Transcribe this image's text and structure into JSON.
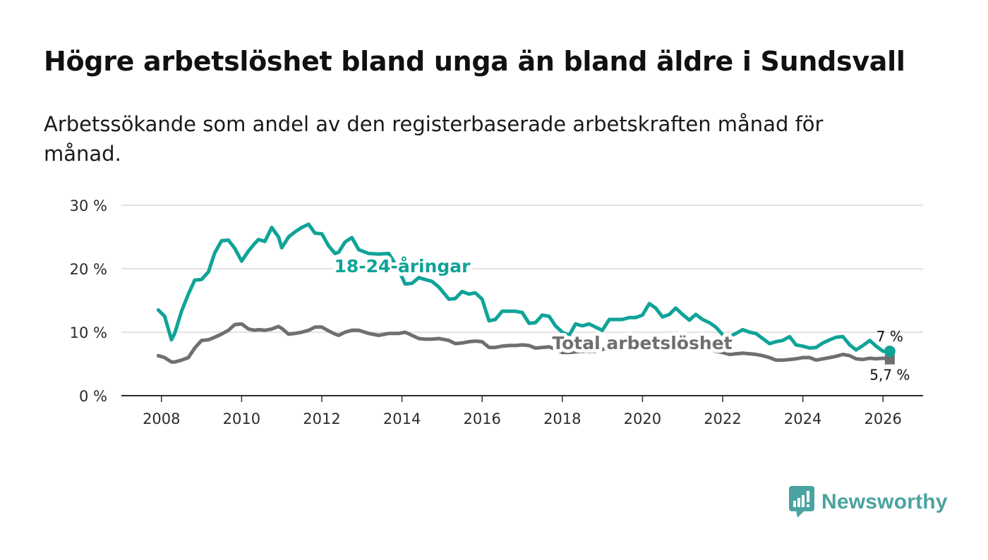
{
  "title": "Högre arbetslöshet bland unga än bland äldre i Sundsvall",
  "subtitle": "Arbetssökande som andel av den registerbaserade arbetskraften månad för månad.",
  "brand": {
    "name": "Newsworthy",
    "icon": "bar-chart-speech-bubble-icon"
  },
  "colors": {
    "youth": "#10a398",
    "total": "#6f6f73",
    "grid": "#d9d9d9",
    "axis": "#2b2b2b",
    "brand": "#4aa3a0"
  },
  "chart_data": {
    "type": "line",
    "title": "Högre arbetslöshet bland unga än bland äldre i Sundsvall",
    "subtitle": "Arbetssökande som andel av den registerbaserade arbetskraften månad för månad.",
    "xlabel": "",
    "ylabel": "",
    "ylim": [
      0,
      30
    ],
    "xlim": [
      2007.0,
      2027.0
    ],
    "grid": true,
    "yticks": [
      0,
      10,
      20,
      30
    ],
    "ytick_labels": [
      "0 %",
      "10 %",
      "20 %",
      "30 %"
    ],
    "xticks": [
      2008,
      2010,
      2012,
      2014,
      2016,
      2018,
      2020,
      2022,
      2024,
      2026
    ],
    "xtick_labels": [
      "2008",
      "2010",
      "2012",
      "2014",
      "2016",
      "2018",
      "2020",
      "2022",
      "2024",
      "2026"
    ],
    "series": [
      {
        "name": "18-24-åringar",
        "label": "18-24-åringar",
        "end_label": "7 %",
        "x": [
          2007.92,
          2008.08,
          2008.25,
          2008.33,
          2008.5,
          2008.67,
          2008.83,
          2009.0,
          2009.17,
          2009.33,
          2009.5,
          2009.67,
          2009.83,
          2010.0,
          2010.17,
          2010.33,
          2010.42,
          2010.58,
          2010.75,
          2010.92,
          2011.0,
          2011.17,
          2011.33,
          2011.5,
          2011.67,
          2011.83,
          2012.0,
          2012.17,
          2012.33,
          2012.42,
          2012.58,
          2012.75,
          2012.92,
          2013.17,
          2013.42,
          2013.67,
          2013.92,
          2014.08,
          2014.25,
          2014.42,
          2014.58,
          2014.75,
          2014.92,
          2015.17,
          2015.33,
          2015.5,
          2015.67,
          2015.83,
          2016.0,
          2016.17,
          2016.33,
          2016.5,
          2016.67,
          2016.83,
          2017.0,
          2017.17,
          2017.33,
          2017.5,
          2017.67,
          2017.83,
          2018.0,
          2018.17,
          2018.33,
          2018.5,
          2018.67,
          2018.83,
          2019.0,
          2019.17,
          2019.33,
          2019.5,
          2019.67,
          2019.83,
          2020.0,
          2020.17,
          2020.33,
          2020.5,
          2020.67,
          2020.83,
          2021.0,
          2021.17,
          2021.33,
          2021.5,
          2021.67,
          2021.83,
          2022.0,
          2022.17,
          2022.33,
          2022.5,
          2022.67,
          2022.83,
          2023.0,
          2023.17,
          2023.33,
          2023.5,
          2023.67,
          2023.83,
          2024.0,
          2024.17,
          2024.33,
          2024.5,
          2024.67,
          2024.83,
          2025.0,
          2025.17,
          2025.33,
          2025.5,
          2025.67,
          2025.83,
          2026.0,
          2026.17
        ],
        "values": [
          13.5,
          12.5,
          8.8,
          9.8,
          13.3,
          16.0,
          18.2,
          18.3,
          19.5,
          22.5,
          24.4,
          24.5,
          23.2,
          21.2,
          22.8,
          24.0,
          24.6,
          24.3,
          26.5,
          25.0,
          23.3,
          25.0,
          25.8,
          26.5,
          27.0,
          25.6,
          25.5,
          23.6,
          22.4,
          22.6,
          24.2,
          24.9,
          23.0,
          22.4,
          22.3,
          22.4,
          19.8,
          17.6,
          17.7,
          18.6,
          18.3,
          18.0,
          17.1,
          15.2,
          15.3,
          16.4,
          16.0,
          16.2,
          15.2,
          11.8,
          12.0,
          13.3,
          13.3,
          13.3,
          13.1,
          11.4,
          11.5,
          12.7,
          12.5,
          11.0,
          10.0,
          9.5,
          11.3,
          11.0,
          11.3,
          10.8,
          10.3,
          12.0,
          12.0,
          12.0,
          12.3,
          12.3,
          12.7,
          14.5,
          13.8,
          12.4,
          12.8,
          13.8,
          12.8,
          11.9,
          12.8,
          12.0,
          11.5,
          10.8,
          9.6,
          9.3,
          9.8,
          10.4,
          10.0,
          9.8,
          9.0,
          8.2,
          8.5,
          8.7,
          9.3,
          8.0,
          7.8,
          7.5,
          7.6,
          8.3,
          8.8,
          9.2,
          9.3,
          8.0,
          7.2,
          7.9,
          8.7,
          7.8,
          7.0,
          7.0
        ]
      },
      {
        "name": "Total arbetslöshet",
        "label": "Total arbetslöshet",
        "end_label": "5,7 %",
        "x": [
          2007.92,
          2008.08,
          2008.25,
          2008.33,
          2008.5,
          2008.67,
          2008.83,
          2009.0,
          2009.17,
          2009.33,
          2009.5,
          2009.67,
          2009.83,
          2010.0,
          2010.17,
          2010.33,
          2010.42,
          2010.58,
          2010.75,
          2010.92,
          2011.0,
          2011.17,
          2011.33,
          2011.5,
          2011.67,
          2011.83,
          2012.0,
          2012.17,
          2012.33,
          2012.42,
          2012.58,
          2012.75,
          2012.92,
          2013.17,
          2013.42,
          2013.67,
          2013.92,
          2014.08,
          2014.25,
          2014.42,
          2014.58,
          2014.75,
          2014.92,
          2015.17,
          2015.33,
          2015.5,
          2015.67,
          2015.83,
          2016.0,
          2016.17,
          2016.33,
          2016.5,
          2016.67,
          2016.83,
          2017.0,
          2017.17,
          2017.33,
          2017.5,
          2017.67,
          2017.83,
          2018.0,
          2018.17,
          2018.33,
          2018.5,
          2018.67,
          2018.83,
          2019.0,
          2019.17,
          2019.33,
          2019.5,
          2019.67,
          2019.83,
          2020.0,
          2020.17,
          2020.33,
          2020.5,
          2020.67,
          2020.83,
          2021.0,
          2021.17,
          2021.33,
          2021.5,
          2021.67,
          2021.83,
          2022.0,
          2022.17,
          2022.33,
          2022.5,
          2022.67,
          2022.83,
          2023.0,
          2023.17,
          2023.33,
          2023.5,
          2023.67,
          2023.83,
          2024.0,
          2024.17,
          2024.33,
          2024.5,
          2024.67,
          2024.83,
          2025.0,
          2025.17,
          2025.33,
          2025.5,
          2025.67,
          2025.83,
          2026.0,
          2026.17
        ],
        "values": [
          6.3,
          6.0,
          5.3,
          5.3,
          5.6,
          6.0,
          7.5,
          8.7,
          8.8,
          9.2,
          9.7,
          10.3,
          11.2,
          11.3,
          10.5,
          10.3,
          10.4,
          10.3,
          10.5,
          10.9,
          10.6,
          9.7,
          9.8,
          10.0,
          10.3,
          10.8,
          10.8,
          10.2,
          9.7,
          9.5,
          10.0,
          10.3,
          10.3,
          9.8,
          9.5,
          9.8,
          9.8,
          10.0,
          9.5,
          9.0,
          8.9,
          8.9,
          9.0,
          8.7,
          8.2,
          8.3,
          8.5,
          8.6,
          8.5,
          7.6,
          7.6,
          7.8,
          7.9,
          7.9,
          8.0,
          7.9,
          7.5,
          7.6,
          7.7,
          7.3,
          6.8,
          6.8,
          6.9,
          7.0,
          7.0,
          7.0,
          7.3,
          7.5,
          7.8,
          7.8,
          7.8,
          7.7,
          7.7,
          7.8,
          7.8,
          7.5,
          7.5,
          7.7,
          7.5,
          7.2,
          7.2,
          7.5,
          7.5,
          7.0,
          6.8,
          6.5,
          6.6,
          6.7,
          6.6,
          6.5,
          6.3,
          6.0,
          5.6,
          5.6,
          5.7,
          5.8,
          6.0,
          6.0,
          5.6,
          5.8,
          6.0,
          6.2,
          6.5,
          6.3,
          5.8,
          5.7,
          5.9,
          5.8,
          5.9,
          5.7
        ]
      }
    ]
  }
}
